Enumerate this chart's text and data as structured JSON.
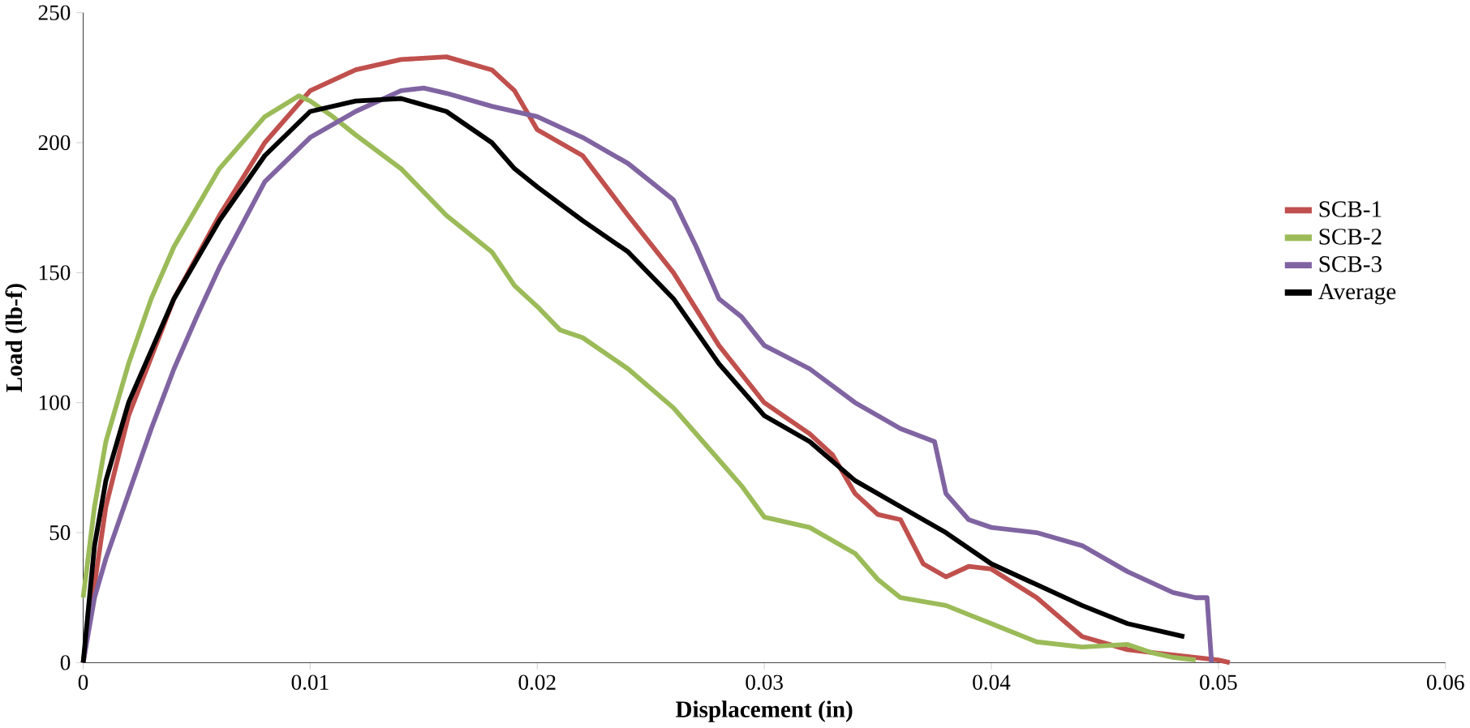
{
  "chart_data": {
    "type": "line",
    "xlabel": "Displacement (in)",
    "ylabel": "Load (lb-f)",
    "xlim": [
      0,
      0.06
    ],
    "xticks": [
      0,
      0.01,
      0.02,
      0.03,
      0.04,
      0.05,
      0.06
    ],
    "ylim": [
      0,
      250
    ],
    "yticks": [
      0,
      50,
      100,
      150,
      200,
      250
    ],
    "grid": false,
    "legend": "right",
    "marker": "none",
    "line_style": "solid",
    "series": [
      {
        "name": "SCB-1",
        "color": "#c0504d",
        "x": [
          0,
          0.001,
          0.002,
          0.004,
          0.006,
          0.008,
          0.01,
          0.012,
          0.014,
          0.016,
          0.018,
          0.019,
          0.02,
          0.022,
          0.024,
          0.026,
          0.028,
          0.03,
          0.032,
          0.033,
          0.034,
          0.035,
          0.036,
          0.037,
          0.038,
          0.039,
          0.04,
          0.042,
          0.044,
          0.046,
          0.048,
          0.05,
          0.0505
        ],
        "values": [
          0,
          60,
          95,
          140,
          172,
          200,
          220,
          228,
          232,
          233,
          228,
          220,
          205,
          195,
          172,
          150,
          122,
          100,
          88,
          80,
          65,
          57,
          55,
          38,
          33,
          37,
          36,
          25,
          10,
          5,
          3,
          1,
          0
        ]
      },
      {
        "name": "SCB-2",
        "color": "#9bbb59",
        "x": [
          0,
          0.0005,
          0.001,
          0.002,
          0.003,
          0.004,
          0.006,
          0.008,
          0.0095,
          0.01,
          0.011,
          0.012,
          0.014,
          0.016,
          0.018,
          0.019,
          0.02,
          0.021,
          0.022,
          0.024,
          0.026,
          0.028,
          0.029,
          0.03,
          0.032,
          0.034,
          0.035,
          0.036,
          0.038,
          0.04,
          0.042,
          0.044,
          0.046,
          0.047,
          0.048,
          0.049
        ],
        "values": [
          25,
          60,
          85,
          115,
          140,
          160,
          190,
          210,
          218,
          216,
          210,
          203,
          190,
          172,
          158,
          145,
          137,
          128,
          125,
          113,
          98,
          78,
          68,
          56,
          52,
          42,
          32,
          25,
          22,
          15,
          8,
          6,
          7,
          4,
          2,
          1
        ]
      },
      {
        "name": "SCB-3",
        "color": "#8064a2",
        "x": [
          0,
          0.0005,
          0.001,
          0.002,
          0.003,
          0.004,
          0.005,
          0.006,
          0.008,
          0.01,
          0.012,
          0.014,
          0.015,
          0.016,
          0.018,
          0.02,
          0.022,
          0.024,
          0.026,
          0.027,
          0.028,
          0.029,
          0.03,
          0.032,
          0.034,
          0.036,
          0.0375,
          0.038,
          0.039,
          0.04,
          0.042,
          0.044,
          0.046,
          0.048,
          0.049,
          0.0495,
          0.0497
        ],
        "values": [
          0,
          25,
          40,
          65,
          90,
          113,
          133,
          152,
          185,
          202,
          212,
          220,
          221,
          219,
          214,
          210,
          202,
          192,
          178,
          160,
          140,
          133,
          122,
          113,
          100,
          90,
          85,
          65,
          55,
          52,
          50,
          45,
          35,
          27,
          25,
          25,
          0
        ]
      },
      {
        "name": "Average",
        "color": "#000000",
        "x": [
          0,
          0.0005,
          0.001,
          0.002,
          0.004,
          0.006,
          0.008,
          0.01,
          0.012,
          0.014,
          0.016,
          0.018,
          0.019,
          0.02,
          0.022,
          0.024,
          0.026,
          0.028,
          0.03,
          0.032,
          0.034,
          0.036,
          0.038,
          0.04,
          0.042,
          0.044,
          0.046,
          0.048,
          0.0485
        ],
        "values": [
          0,
          45,
          70,
          100,
          140,
          170,
          195,
          212,
          216,
          217,
          212,
          200,
          190,
          183,
          170,
          158,
          140,
          115,
          95,
          85,
          70,
          60,
          50,
          38,
          30,
          22,
          15,
          11,
          10
        ]
      }
    ]
  }
}
